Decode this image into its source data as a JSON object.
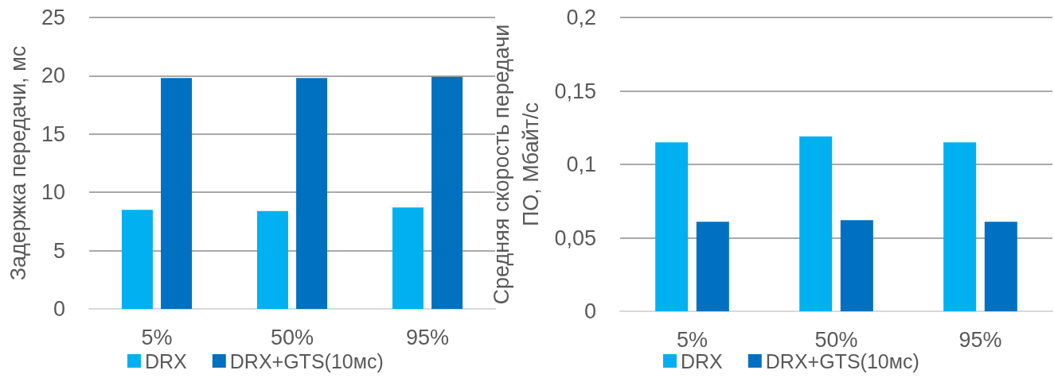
{
  "chart_data": [
    {
      "type": "bar",
      "ylabel": "Задержка передачи, мс",
      "categories": [
        "5%",
        "50%",
        "95%"
      ],
      "series": [
        {
          "name": "DRX",
          "color": "#00b0f0",
          "values": [
            8.5,
            8.4,
            8.7
          ]
        },
        {
          "name": "DRX+GTS(10мс)",
          "color": "#0070c0",
          "values": [
            19.8,
            19.8,
            19.9
          ]
        }
      ],
      "ylim": [
        0,
        25
      ],
      "yticks": [
        0,
        5,
        10,
        15,
        20,
        25
      ],
      "grid": "y",
      "legend": "bottom"
    },
    {
      "type": "bar",
      "ylabel": "Средняя скорость передачи\nПО, Мбайт/с",
      "categories": [
        "5%",
        "50%",
        "95%"
      ],
      "series": [
        {
          "name": "DRX",
          "color": "#00b0f0",
          "values": [
            0.115,
            0.119,
            0.115
          ]
        },
        {
          "name": "DRX+GTS(10мс)",
          "color": "#0070c0",
          "values": [
            0.061,
            0.062,
            0.061
          ]
        }
      ],
      "ylim": [
        0,
        0.2
      ],
      "yticks": [
        0,
        {
          "value": 0.05,
          "label": "0,05"
        },
        {
          "value": 0.1,
          "label": "0,1"
        },
        {
          "value": 0.15,
          "label": "0,15"
        },
        {
          "value": 0.2,
          "label": "0,2"
        }
      ],
      "grid": "y",
      "legend": "bottom"
    }
  ]
}
